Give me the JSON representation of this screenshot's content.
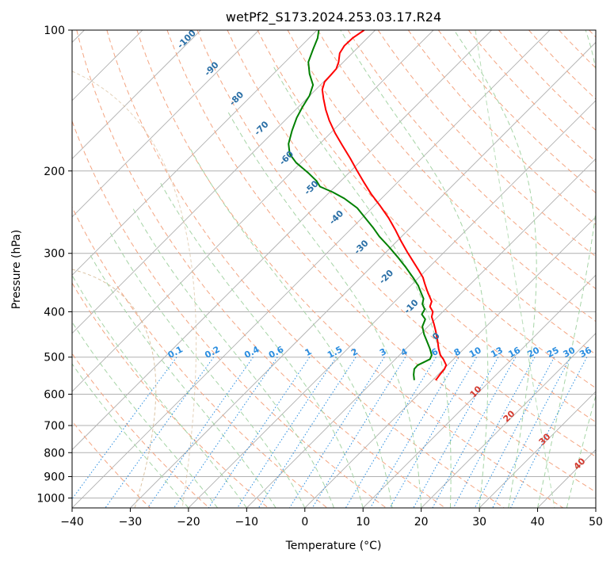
{
  "chart_data": {
    "type": "line",
    "title": "wetPf2_S173.2024.253.03.17.R24",
    "xlabel": "Temperature (°C)",
    "ylabel": "Pressure (hPa)",
    "xlim": [
      -40,
      50
    ],
    "ylim": [
      1050,
      100
    ],
    "yscale": "log",
    "grid": true,
    "x_ticks": [
      -40,
      -30,
      -20,
      -10,
      0,
      10,
      20,
      30,
      40,
      50
    ],
    "y_ticks": [
      100,
      200,
      300,
      400,
      500,
      600,
      700,
      800,
      900,
      1000
    ],
    "series": [
      {
        "name": "",
        "color": "#ff0000",
        "points": [
          [
            22.5,
            560
          ],
          [
            23.2,
            545
          ],
          [
            24.0,
            530
          ],
          [
            24.3,
            520
          ],
          [
            23.8,
            505
          ],
          [
            23.3,
            495
          ],
          [
            23.0,
            480
          ],
          [
            22.8,
            460
          ],
          [
            22.5,
            440
          ],
          [
            22.2,
            425
          ],
          [
            21.8,
            410
          ],
          [
            22.0,
            400
          ],
          [
            21.5,
            390
          ],
          [
            21.8,
            380
          ],
          [
            21.4,
            370
          ],
          [
            21.0,
            360
          ],
          [
            20.6,
            348
          ],
          [
            20.3,
            338
          ],
          [
            19.5,
            325
          ],
          [
            18.6,
            312
          ],
          [
            17.6,
            298
          ],
          [
            16.5,
            282
          ],
          [
            15.6,
            268
          ],
          [
            14.4,
            252
          ],
          [
            13.0,
            238
          ],
          [
            11.4,
            224
          ],
          [
            10.2,
            212
          ],
          [
            9.0,
            200
          ],
          [
            7.8,
            188
          ],
          [
            6.4,
            176
          ],
          [
            5.2,
            166
          ],
          [
            4.2,
            156
          ],
          [
            3.6,
            148
          ],
          [
            3.2,
            140
          ],
          [
            3.0,
            134
          ],
          [
            3.4,
            129
          ],
          [
            4.4,
            125
          ],
          [
            5.4,
            121
          ],
          [
            5.8,
            117
          ],
          [
            6.0,
            112
          ],
          [
            6.8,
            108
          ],
          [
            8.2,
            104
          ],
          [
            10.2,
            100
          ]
        ]
      },
      {
        "name": "",
        "color": "#008000",
        "points": [
          [
            18.8,
            560
          ],
          [
            18.7,
            545
          ],
          [
            18.8,
            530
          ],
          [
            19.4,
            520
          ],
          [
            20.4,
            513
          ],
          [
            21.5,
            505
          ],
          [
            21.8,
            495
          ],
          [
            21.5,
            480
          ],
          [
            21.0,
            463
          ],
          [
            20.5,
            447
          ],
          [
            20.2,
            430
          ],
          [
            20.7,
            415
          ],
          [
            20.1,
            405
          ],
          [
            20.6,
            395
          ],
          [
            20.2,
            385
          ],
          [
            20.4,
            375
          ],
          [
            20.0,
            365
          ],
          [
            19.5,
            352
          ],
          [
            18.6,
            338
          ],
          [
            17.4,
            322
          ],
          [
            16.0,
            306
          ],
          [
            14.4,
            290
          ],
          [
            12.8,
            276
          ],
          [
            11.8,
            265
          ],
          [
            10.6,
            254
          ],
          [
            9.0,
            240
          ],
          [
            6.8,
            229
          ],
          [
            4.8,
            222
          ],
          [
            2.6,
            216
          ],
          [
            2.0,
            210
          ],
          [
            0.6,
            202
          ],
          [
            -1.5,
            192
          ],
          [
            -2.6,
            184
          ],
          [
            -2.8,
            175
          ],
          [
            -2.2,
            164
          ],
          [
            -1.4,
            154
          ],
          [
            -0.4,
            146
          ],
          [
            0.8,
            138
          ],
          [
            1.4,
            131
          ],
          [
            0.8,
            124
          ],
          [
            0.6,
            117
          ],
          [
            1.4,
            110
          ],
          [
            2.2,
            104
          ],
          [
            2.4,
            100
          ]
        ]
      }
    ],
    "mixing_ratio_labels": [
      "0.1",
      "0.2",
      "0.4",
      "0.6",
      "1",
      "1.5",
      "2",
      "3",
      "4",
      "6",
      "8",
      "10",
      "13",
      "16",
      "20",
      "25",
      "30",
      "36"
    ],
    "dry_adiabat_labels": [
      "-100",
      "-90",
      "-80",
      "-70",
      "-60",
      "-50",
      "-40",
      "-30",
      "-20",
      "-10",
      "0"
    ],
    "moist_adiabat_labels": [
      "10",
      "20",
      "30",
      "40"
    ],
    "colors": {
      "isotherm": "#b0b0b0",
      "dry_adiabat": "#f4a582",
      "moist_adiabat": "#a6d4a6",
      "mixing_ratio": "#2b8ee0",
      "background_arc": "#d2b48c"
    }
  }
}
